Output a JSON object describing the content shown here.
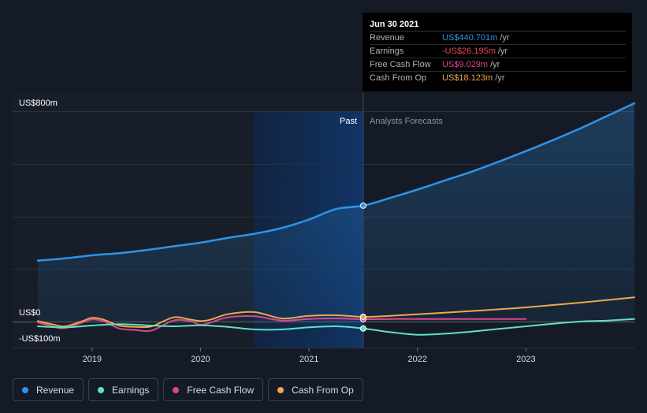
{
  "tooltip": {
    "date": "Jun 30 2021",
    "rows": [
      {
        "label": "Revenue",
        "value": "US$440.701m",
        "unit": "/yr",
        "color": "#2f93e6"
      },
      {
        "label": "Earnings",
        "value": "-US$26.195m",
        "unit": "/yr",
        "color": "#e8484c"
      },
      {
        "label": "Free Cash Flow",
        "value": "US$9.029m",
        "unit": "/yr",
        "color": "#d9488a"
      },
      {
        "label": "Cash From Op",
        "value": "US$18.123m",
        "unit": "/yr",
        "color": "#e9a94e"
      }
    ]
  },
  "labels": {
    "past": "Past",
    "forecast": "Analysts Forecasts",
    "y_top": "US$800m",
    "y_zero": "US$0",
    "y_bottom": "-US$100m"
  },
  "legend": [
    {
      "label": "Revenue",
      "color": "#2f93e6"
    },
    {
      "label": "Earnings",
      "color": "#5ee0c8"
    },
    {
      "label": "Free Cash Flow",
      "color": "#d9488a"
    },
    {
      "label": "Cash From Op",
      "color": "#e9a94e"
    }
  ],
  "chart_data": {
    "type": "line",
    "xlim": [
      2018.5,
      2024.0
    ],
    "ylim": [
      -100,
      800
    ],
    "x_ticks": [
      2019,
      2020,
      2021,
      2022,
      2023
    ],
    "y_ticks": [
      -100,
      0,
      800
    ],
    "past_end": 2021.5,
    "series": [
      {
        "name": "Revenue",
        "color": "#2f93e6",
        "points": [
          [
            2018.5,
            232
          ],
          [
            2018.75,
            240
          ],
          [
            2019.0,
            252
          ],
          [
            2019.25,
            260
          ],
          [
            2019.5,
            272
          ],
          [
            2019.75,
            286
          ],
          [
            2020.0,
            300
          ],
          [
            2020.25,
            318
          ],
          [
            2020.5,
            334
          ],
          [
            2020.75,
            356
          ],
          [
            2021.0,
            388
          ],
          [
            2021.25,
            428
          ],
          [
            2021.5,
            440.7
          ],
          [
            2021.75,
            470
          ],
          [
            2022.0,
            502
          ],
          [
            2022.25,
            536
          ],
          [
            2022.5,
            570
          ],
          [
            2022.75,
            608
          ],
          [
            2023.0,
            648
          ],
          [
            2023.25,
            690
          ],
          [
            2023.5,
            734
          ],
          [
            2023.75,
            782
          ],
          [
            2024.0,
            830
          ]
        ]
      },
      {
        "name": "Earnings",
        "color": "#5ee0c8",
        "points": [
          [
            2018.5,
            -18
          ],
          [
            2018.75,
            -22
          ],
          [
            2019.0,
            -15
          ],
          [
            2019.25,
            -10
          ],
          [
            2019.5,
            -14
          ],
          [
            2019.75,
            -18
          ],
          [
            2020.0,
            -14
          ],
          [
            2020.25,
            -20
          ],
          [
            2020.5,
            -30
          ],
          [
            2020.75,
            -30
          ],
          [
            2021.0,
            -22
          ],
          [
            2021.25,
            -18
          ],
          [
            2021.5,
            -26.2
          ],
          [
            2021.75,
            -40
          ],
          [
            2022.0,
            -50
          ],
          [
            2022.25,
            -46
          ],
          [
            2022.5,
            -38
          ],
          [
            2022.75,
            -28
          ],
          [
            2023.0,
            -18
          ],
          [
            2023.25,
            -8
          ],
          [
            2023.5,
            0
          ],
          [
            2023.75,
            4
          ],
          [
            2024.0,
            10
          ]
        ]
      },
      {
        "name": "Free Cash Flow",
        "color": "#d9488a",
        "points": [
          [
            2018.5,
            -3
          ],
          [
            2018.65,
            -20
          ],
          [
            2018.75,
            -25
          ],
          [
            2018.9,
            -5
          ],
          [
            2019.0,
            8
          ],
          [
            2019.1,
            2
          ],
          [
            2019.25,
            -26
          ],
          [
            2019.4,
            -32
          ],
          [
            2019.55,
            -34
          ],
          [
            2019.75,
            4
          ],
          [
            2019.9,
            2
          ],
          [
            2020.0,
            -12
          ],
          [
            2020.1,
            -3
          ],
          [
            2020.25,
            16
          ],
          [
            2020.5,
            20
          ],
          [
            2020.75,
            4
          ],
          [
            2021.0,
            10
          ],
          [
            2021.25,
            12
          ],
          [
            2021.5,
            9
          ],
          [
            2021.75,
            10
          ],
          [
            2022.0,
            10
          ],
          [
            2022.5,
            10
          ],
          [
            2023.0,
            10
          ]
        ]
      },
      {
        "name": "Cash From Op",
        "color": "#e9a94e",
        "points": [
          [
            2018.5,
            2
          ],
          [
            2018.65,
            -12
          ],
          [
            2018.75,
            -18
          ],
          [
            2018.9,
            0
          ],
          [
            2019.0,
            14
          ],
          [
            2019.1,
            8
          ],
          [
            2019.25,
            -15
          ],
          [
            2019.4,
            -20
          ],
          [
            2019.55,
            -18
          ],
          [
            2019.75,
            16
          ],
          [
            2019.9,
            8
          ],
          [
            2020.0,
            2
          ],
          [
            2020.1,
            8
          ],
          [
            2020.25,
            28
          ],
          [
            2020.5,
            36
          ],
          [
            2020.75,
            12
          ],
          [
            2021.0,
            22
          ],
          [
            2021.25,
            24
          ],
          [
            2021.5,
            18.1
          ],
          [
            2021.75,
            22
          ],
          [
            2022.0,
            28
          ],
          [
            2022.5,
            40
          ],
          [
            2023.0,
            54
          ],
          [
            2023.5,
            72
          ],
          [
            2024.0,
            92
          ]
        ]
      }
    ]
  }
}
